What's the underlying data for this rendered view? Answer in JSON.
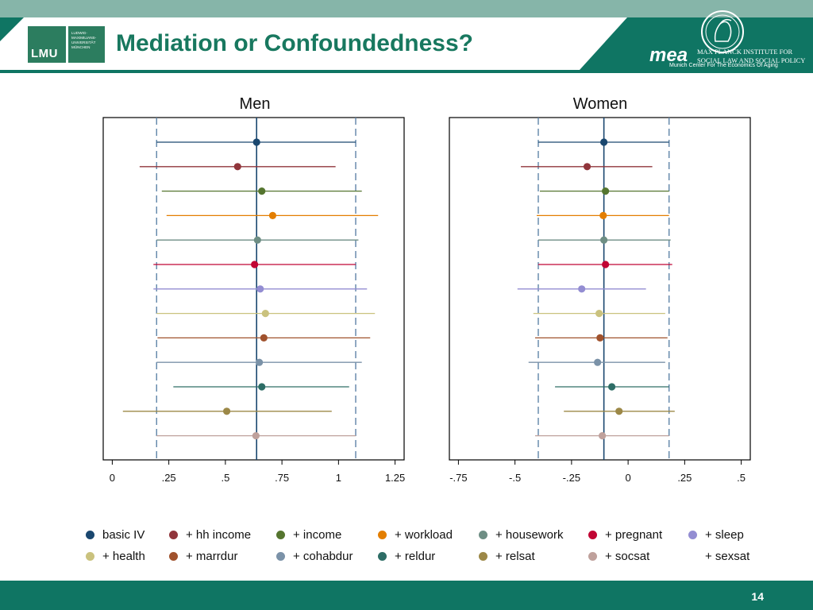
{
  "slide": {
    "title": "Mediation or Confoundedness?",
    "page_number": "14",
    "lmu_logo": "LMU",
    "lmu_text": [
      "LUDWIG-",
      "MAXIMILIANS-",
      "UNIVERSITÄT",
      "MÜNCHEN"
    ],
    "mea_logo": "mea",
    "mea_institute": [
      "MAX PLANCK INSTITUTE FOR",
      "SOCIAL LAW AND SOCIAL POLICY"
    ],
    "mea_subtitle": "Munich Center For The Economics Of Aging"
  },
  "chart_data": [
    {
      "type": "scatter",
      "title": "Men",
      "xlim": [
        -0.04,
        1.29
      ],
      "xticks": [
        0,
        0.25,
        0.5,
        0.75,
        1,
        1.25
      ],
      "xtick_labels": [
        "0",
        ".25",
        ".5",
        ".75",
        "1",
        "1.25"
      ],
      "reference_lines": {
        "solid": 0.638,
        "dashed": [
          0.196,
          1.076
        ]
      },
      "series": [
        {
          "name": "basic IV",
          "color": "#1a476f",
          "estimate": 0.638,
          "ci": [
            0.196,
            1.076
          ]
        },
        {
          "name": "+ hh income",
          "color": "#90353b",
          "estimate": 0.554,
          "ci": [
            0.121,
            0.987
          ]
        },
        {
          "name": "+ income",
          "color": "#55752f",
          "estimate": 0.661,
          "ci": [
            0.219,
            1.103
          ]
        },
        {
          "name": "+ workload",
          "color": "#e37e00",
          "estimate": 0.709,
          "ci": [
            0.24,
            1.175
          ]
        },
        {
          "name": "+ housework",
          "color": "#6e8e84",
          "estimate": 0.642,
          "ci": [
            0.196,
            1.088
          ]
        },
        {
          "name": "+ pregnant",
          "color": "#c10534",
          "estimate": 0.629,
          "ci": [
            0.182,
            1.076
          ]
        },
        {
          "name": "+ sleep",
          "color": "#938dd2",
          "estimate": 0.654,
          "ci": [
            0.182,
            1.126
          ]
        },
        {
          "name": "+ health",
          "color": "#cac27e",
          "estimate": 0.677,
          "ci": [
            0.196,
            1.161
          ]
        },
        {
          "name": "+ marrdur",
          "color": "#a0522d",
          "estimate": 0.67,
          "ci": [
            0.2,
            1.14
          ]
        },
        {
          "name": "+ cohabdur",
          "color": "#7b92a8",
          "estimate": 0.65,
          "ci": [
            0.196,
            1.103
          ]
        },
        {
          "name": "+ reldur",
          "color": "#2d6d66",
          "estimate": 0.661,
          "ci": [
            0.27,
            1.047
          ]
        },
        {
          "name": "+ relsat",
          "color": "#9c8847",
          "estimate": 0.506,
          "ci": [
            0.047,
            0.97
          ]
        },
        {
          "name": "+ socsat",
          "color": "#bfa19c",
          "estimate": 0.635,
          "ci": [
            0.196,
            1.076
          ]
        },
        {
          "name": "+ sexsat",
          "color": "#ffd200",
          "estimate": null,
          "ci": null
        }
      ]
    },
    {
      "type": "scatter",
      "title": "Women",
      "xlim": [
        -0.79,
        0.54
      ],
      "xticks": [
        -0.75,
        -0.5,
        -0.25,
        0,
        0.25,
        0.5
      ],
      "xtick_labels": [
        "-.75",
        "-.5",
        "-.25",
        "0",
        ".25",
        ".5"
      ],
      "reference_lines": {
        "solid": -0.107,
        "dashed": [
          -0.397,
          0.181
        ]
      },
      "series": [
        {
          "name": "basic IV",
          "color": "#1a476f",
          "estimate": -0.107,
          "ci": [
            -0.397,
            0.181
          ]
        },
        {
          "name": "+ hh income",
          "color": "#90353b",
          "estimate": -0.181,
          "ci": [
            -0.474,
            0.107
          ]
        },
        {
          "name": "+ income",
          "color": "#55752f",
          "estimate": -0.1,
          "ci": [
            -0.39,
            0.181
          ]
        },
        {
          "name": "+ workload",
          "color": "#e37e00",
          "estimate": -0.11,
          "ci": [
            -0.404,
            0.181
          ]
        },
        {
          "name": "+ housework",
          "color": "#6e8e84",
          "estimate": -0.107,
          "ci": [
            -0.397,
            0.188
          ]
        },
        {
          "name": "+ pregnant",
          "color": "#c10534",
          "estimate": -0.1,
          "ci": [
            -0.397,
            0.195
          ]
        },
        {
          "name": "+ sleep",
          "color": "#938dd2",
          "estimate": -0.205,
          "ci": [
            -0.489,
            0.079
          ]
        },
        {
          "name": "+ health",
          "color": "#cac27e",
          "estimate": -0.128,
          "ci": [
            -0.419,
            0.164
          ]
        },
        {
          "name": "+ marrdur",
          "color": "#a0522d",
          "estimate": -0.124,
          "ci": [
            -0.411,
            0.174
          ]
        },
        {
          "name": "+ cohabdur",
          "color": "#7b92a8",
          "estimate": -0.135,
          "ci": [
            -0.44,
            0.164
          ]
        },
        {
          "name": "+ reldur",
          "color": "#2d6d66",
          "estimate": -0.072,
          "ci": [
            -0.323,
            0.181
          ]
        },
        {
          "name": "+ relsat",
          "color": "#9c8847",
          "estimate": -0.04,
          "ci": [
            -0.284,
            0.206
          ]
        },
        {
          "name": "+ socsat",
          "color": "#bfa19c",
          "estimate": -0.114,
          "ci": [
            -0.411,
            0.181
          ]
        },
        {
          "name": "+ sexsat",
          "color": "#ffd200",
          "estimate": null,
          "ci": null
        }
      ]
    }
  ]
}
